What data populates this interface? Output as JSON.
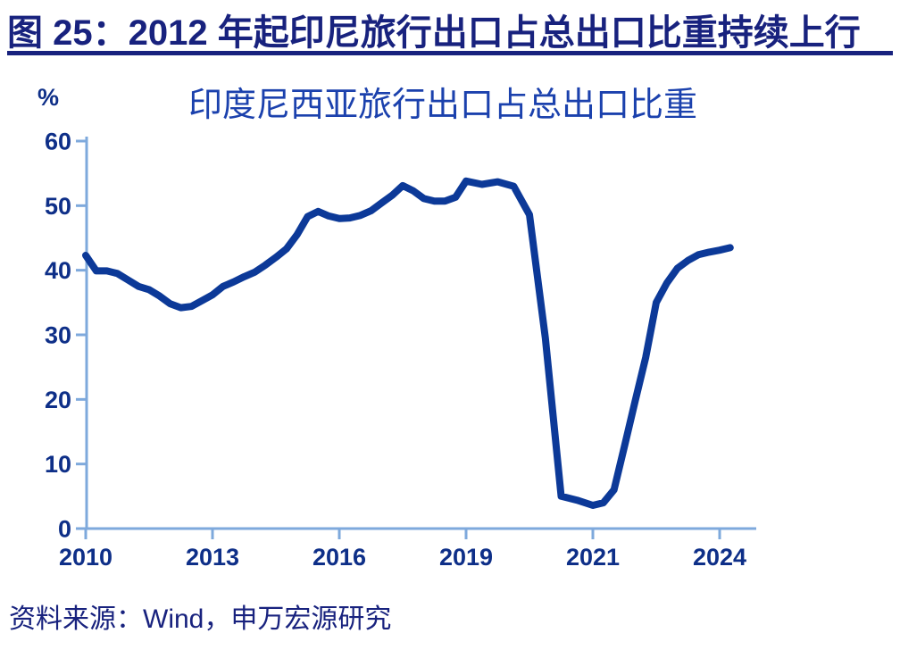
{
  "header": {
    "title": "图 25：2012 年起印尼旅行出口占总出口比重持续上行"
  },
  "footer": {
    "source": "资料来源：Wind，申万宏源研究"
  },
  "chart_data": {
    "type": "line",
    "title": "印度尼西亚旅行出口占总出口比重",
    "xlabel": "",
    "ylabel": "%",
    "ylim": [
      0,
      60
    ],
    "y_ticks": [
      0,
      10,
      20,
      30,
      40,
      50,
      60
    ],
    "x_tick_labels": [
      "2010",
      "2013",
      "2016",
      "2019",
      "2021",
      "2024"
    ],
    "x_tick_years": [
      2010,
      2013,
      2016,
      2019,
      2021,
      2024
    ],
    "grid": false,
    "legend": "none",
    "colors": {
      "axis": "#7ea9dc",
      "tick_label": "#0e2f88",
      "chart_title": "#1b41ad",
      "header_navy": "#18227e",
      "line": "#0c3998"
    },
    "series": [
      {
        "name": "印度尼西亚旅行出口占总出口比重",
        "color": "#0c3998",
        "x_unit": "decimal_year_quarterly",
        "points": [
          [
            2010.0,
            42.3
          ],
          [
            2010.25,
            39.9
          ],
          [
            2010.5,
            39.9
          ],
          [
            2010.75,
            39.5
          ],
          [
            2011.0,
            38.5
          ],
          [
            2011.25,
            37.5
          ],
          [
            2011.5,
            37.0
          ],
          [
            2011.75,
            36.0
          ],
          [
            2012.0,
            34.8
          ],
          [
            2012.25,
            34.2
          ],
          [
            2012.5,
            34.4
          ],
          [
            2012.75,
            35.3
          ],
          [
            2013.0,
            36.2
          ],
          [
            2013.25,
            37.5
          ],
          [
            2013.5,
            38.2
          ],
          [
            2013.75,
            39.0
          ],
          [
            2014.0,
            39.7
          ],
          [
            2014.25,
            40.8
          ],
          [
            2014.5,
            42.0
          ],
          [
            2014.75,
            43.3
          ],
          [
            2015.0,
            45.5
          ],
          [
            2015.25,
            48.3
          ],
          [
            2015.5,
            49.1
          ],
          [
            2015.75,
            48.4
          ],
          [
            2016.0,
            48.0
          ],
          [
            2016.25,
            48.1
          ],
          [
            2016.5,
            48.5
          ],
          [
            2016.75,
            49.2
          ],
          [
            2017.0,
            50.4
          ],
          [
            2017.25,
            51.6
          ],
          [
            2017.5,
            53.1
          ],
          [
            2017.75,
            52.3
          ],
          [
            2018.0,
            51.1
          ],
          [
            2018.25,
            50.7
          ],
          [
            2018.5,
            50.7
          ],
          [
            2018.75,
            51.3
          ],
          [
            2019.0,
            53.8
          ],
          [
            2019.25,
            53.3
          ],
          [
            2019.5,
            53.7
          ],
          [
            2019.75,
            53.0
          ],
          [
            2020.0,
            48.6
          ],
          [
            2020.25,
            29.5
          ],
          [
            2020.5,
            5.0
          ],
          [
            2020.75,
            4.4
          ],
          [
            2021.0,
            3.6
          ],
          [
            2021.25,
            4.0
          ],
          [
            2021.5,
            6.0
          ],
          [
            2021.75,
            12.8
          ],
          [
            2022.0,
            19.7
          ],
          [
            2022.25,
            26.5
          ],
          [
            2022.5,
            35.0
          ],
          [
            2022.75,
            38.0
          ],
          [
            2023.0,
            40.3
          ],
          [
            2023.25,
            41.5
          ],
          [
            2023.5,
            42.4
          ],
          [
            2023.75,
            42.8
          ],
          [
            2024.0,
            43.1
          ],
          [
            2024.25,
            43.5
          ]
        ]
      }
    ]
  }
}
